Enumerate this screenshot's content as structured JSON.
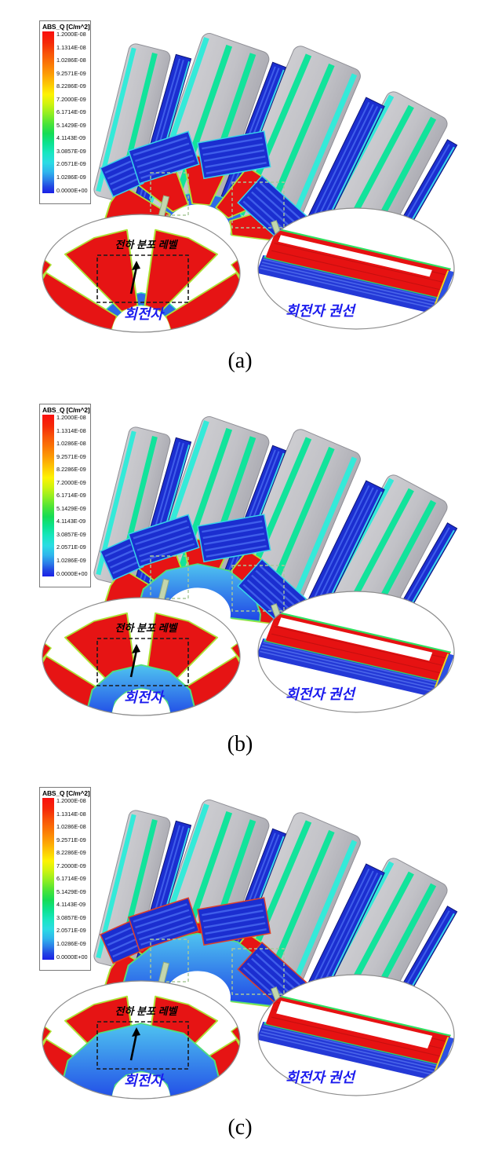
{
  "panels": [
    {
      "id": "a",
      "caption": "(a)"
    },
    {
      "id": "b",
      "caption": "(b)"
    },
    {
      "id": "c",
      "caption": "(c)"
    }
  ],
  "legend": {
    "title": "ABS_Q [C/m^2]",
    "labels": [
      "1.2000E-08",
      "1.1314E-08",
      "1.0286E-08",
      "9.2571E-09",
      "8.2286E-09",
      "7.2000E-09",
      "6.1714E-09",
      "5.1429E-09",
      "4.1143E-09",
      "3.0857E-09",
      "2.0571E-09",
      "1.0286E-09",
      "0.0000E+00"
    ]
  },
  "annotations": {
    "charge_level": "전하 분포 레벨",
    "rotor": "회전자",
    "rotor_winding": "회전자 권선"
  },
  "colors": {
    "max_red": "#e61212",
    "min_blue": "#1b20e6",
    "slab_gray": "#c3c3c7",
    "stripe_green": "#12e39b",
    "stripe_cyan": "#34ead9",
    "coil_blue": "#1b2ed0",
    "annotation_blue": "#1a1aee"
  }
}
